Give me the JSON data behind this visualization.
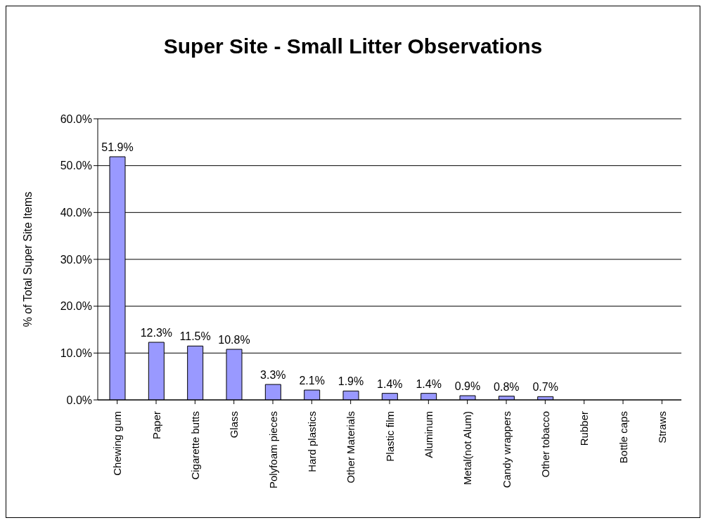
{
  "chart_data": {
    "type": "bar",
    "title": "Super Site - Small Litter Observations",
    "ylabel": "% of Total Super Site Items",
    "categories": [
      "Chewing gum",
      "Paper",
      "Cigarette butts",
      "Glass",
      "Polyfoam pieces",
      "Hard plastics",
      "Other Materials",
      "Plastic film",
      "Aluminum",
      "Metal(not Alum)",
      "Candy wrappers",
      "Other tobacco",
      "Rubber",
      "Bottle caps",
      "Straws"
    ],
    "values": [
      51.9,
      12.3,
      11.5,
      10.8,
      3.3,
      2.1,
      1.9,
      1.4,
      1.4,
      0.9,
      0.8,
      0.7,
      null,
      null,
      null
    ],
    "value_labels": [
      "51.9%",
      "12.3%",
      "11.5%",
      "10.8%",
      "3.3%",
      "2.1%",
      "1.9%",
      "1.4%",
      "1.4%",
      "0.9%",
      "0.8%",
      "0.7%",
      null,
      null,
      null
    ],
    "color": "#9999ff",
    "ylim": [
      0,
      60
    ],
    "yticks": [
      {
        "value": 0,
        "label": "0.0%"
      },
      {
        "value": 10,
        "label": "10.0%"
      },
      {
        "value": 20,
        "label": "20.0%"
      },
      {
        "value": 30,
        "label": "30.0%"
      },
      {
        "value": 40,
        "label": "40.0%"
      },
      {
        "value": 50,
        "label": "50.0%"
      },
      {
        "value": 60,
        "label": "60.0%"
      }
    ],
    "grid": "y"
  }
}
